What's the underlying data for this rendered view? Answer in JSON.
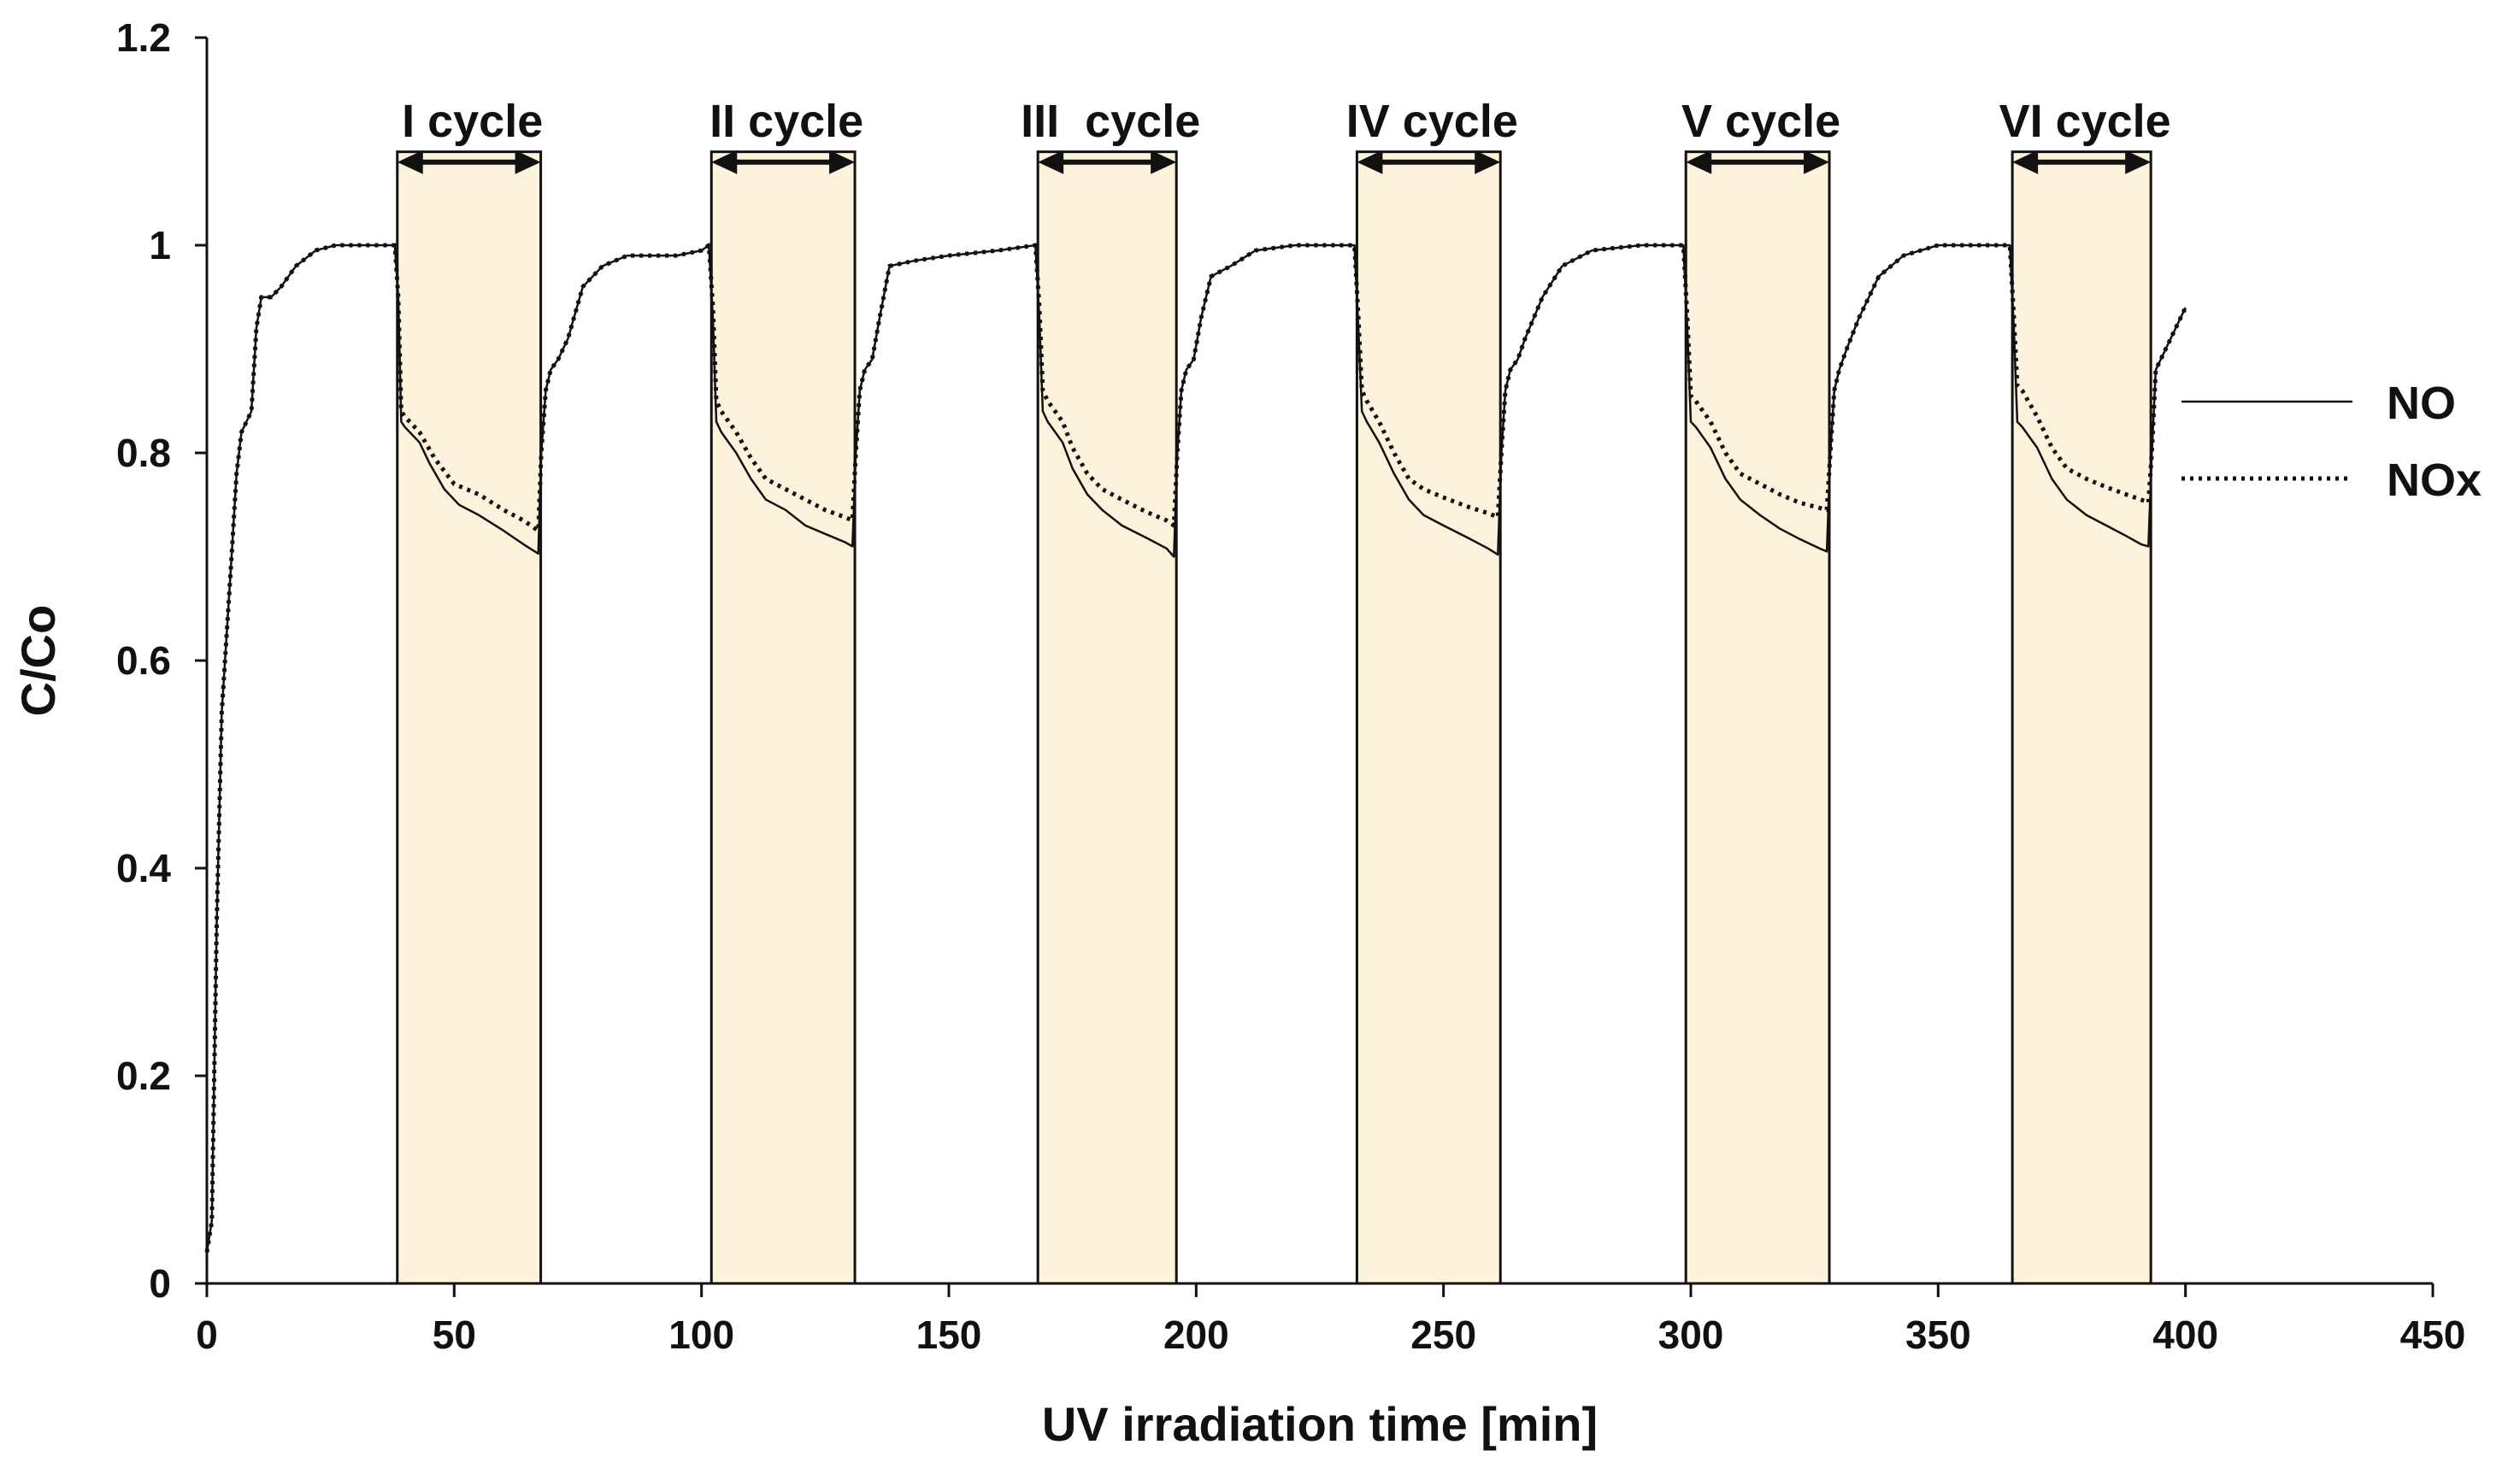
{
  "chart_data": {
    "type": "line",
    "title": "",
    "xlabel": "UV irradiation time [min]",
    "ylabel": "C/Co",
    "xlim": [
      0,
      450
    ],
    "ylim": [
      0,
      1.2
    ],
    "x_ticks": [
      0,
      50,
      100,
      150,
      200,
      250,
      300,
      350,
      400,
      450
    ],
    "y_ticks": [
      0,
      0.2,
      0.4,
      0.6,
      0.8,
      1,
      1.2
    ],
    "x_tick_labels": [
      "0",
      "50",
      "100",
      "150",
      "200",
      "250",
      "300",
      "350",
      "400",
      "450"
    ],
    "y_tick_labels": [
      "0",
      "0.2",
      "0.4",
      "0.6",
      "0.8",
      "1",
      "1.2"
    ],
    "grid": false,
    "legend_position": "right",
    "highlight_color": "#fdf3dc",
    "cycles": [
      {
        "label": "I cycle",
        "start": 38.5,
        "end": 67.5
      },
      {
        "label": "II cycle",
        "start": 102,
        "end": 131
      },
      {
        "label": "III  cycle",
        "start": 168,
        "end": 196
      },
      {
        "label": "IV cycle",
        "start": 232.5,
        "end": 261.5
      },
      {
        "label": "V cycle",
        "start": 299,
        "end": 328
      },
      {
        "label": "VI cycle",
        "start": 365,
        "end": 393
      }
    ],
    "series": [
      {
        "name": "NO",
        "style": "solid",
        "color": "#111111",
        "points": [
          [
            0,
            0.03
          ],
          [
            1,
            0.06
          ],
          [
            2,
            0.35
          ],
          [
            3,
            0.55
          ],
          [
            5,
            0.7
          ],
          [
            6,
            0.78
          ],
          [
            7,
            0.82
          ],
          [
            8,
            0.83
          ],
          [
            9,
            0.84
          ],
          [
            10,
            0.92
          ],
          [
            11,
            0.95
          ],
          [
            13,
            0.95
          ],
          [
            15,
            0.96
          ],
          [
            18,
            0.98
          ],
          [
            22,
            0.995
          ],
          [
            26,
            1.0
          ],
          [
            30,
            1.0
          ],
          [
            34,
            1.0
          ],
          [
            38,
            1.0
          ],
          [
            38.7,
            0.95
          ],
          [
            39.3,
            0.83
          ],
          [
            40,
            0.825
          ],
          [
            43,
            0.81
          ],
          [
            45,
            0.79
          ],
          [
            48,
            0.765
          ],
          [
            51,
            0.75
          ],
          [
            55,
            0.74
          ],
          [
            60,
            0.725
          ],
          [
            64,
            0.712
          ],
          [
            67,
            0.703
          ],
          [
            67.6,
            0.8
          ],
          [
            68.5,
            0.86
          ],
          [
            69.5,
            0.88
          ],
          [
            71,
            0.89
          ],
          [
            73,
            0.91
          ],
          [
            76,
            0.96
          ],
          [
            80,
            0.98
          ],
          [
            85,
            0.99
          ],
          [
            90,
            0.99
          ],
          [
            95,
            0.99
          ],
          [
            100,
            0.995
          ],
          [
            101.5,
            1.0
          ],
          [
            102.3,
            0.93
          ],
          [
            103,
            0.83
          ],
          [
            104,
            0.82
          ],
          [
            107,
            0.8
          ],
          [
            110,
            0.775
          ],
          [
            113,
            0.755
          ],
          [
            117,
            0.745
          ],
          [
            121,
            0.73
          ],
          [
            125,
            0.722
          ],
          [
            129,
            0.714
          ],
          [
            130.5,
            0.71
          ],
          [
            131.2,
            0.8
          ],
          [
            132,
            0.86
          ],
          [
            133,
            0.88
          ],
          [
            134.5,
            0.89
          ],
          [
            136,
            0.93
          ],
          [
            138,
            0.98
          ],
          [
            143,
            0.985
          ],
          [
            150,
            0.99
          ],
          [
            160,
            0.995
          ],
          [
            167.5,
            1.0
          ],
          [
            168.3,
            0.93
          ],
          [
            169,
            0.84
          ],
          [
            170,
            0.83
          ],
          [
            173,
            0.81
          ],
          [
            175,
            0.785
          ],
          [
            178,
            0.76
          ],
          [
            181,
            0.745
          ],
          [
            185,
            0.73
          ],
          [
            190,
            0.718
          ],
          [
            194,
            0.708
          ],
          [
            195.5,
            0.7
          ],
          [
            196.2,
            0.8
          ],
          [
            197,
            0.86
          ],
          [
            198,
            0.88
          ],
          [
            199.5,
            0.89
          ],
          [
            201,
            0.93
          ],
          [
            203,
            0.97
          ],
          [
            207,
            0.98
          ],
          [
            212,
            0.995
          ],
          [
            220,
            1.0
          ],
          [
            228,
            1.0
          ],
          [
            232,
            1.0
          ],
          [
            232.8,
            0.92
          ],
          [
            233.5,
            0.84
          ],
          [
            234.5,
            0.83
          ],
          [
            237,
            0.81
          ],
          [
            240,
            0.78
          ],
          [
            243,
            0.755
          ],
          [
            246,
            0.74
          ],
          [
            250,
            0.73
          ],
          [
            255,
            0.718
          ],
          [
            259,
            0.708
          ],
          [
            261,
            0.702
          ],
          [
            261.7,
            0.8
          ],
          [
            262.5,
            0.86
          ],
          [
            263.5,
            0.88
          ],
          [
            265,
            0.89
          ],
          [
            266.5,
            0.91
          ],
          [
            270,
            0.95
          ],
          [
            274,
            0.98
          ],
          [
            280,
            0.995
          ],
          [
            290,
            1.0
          ],
          [
            298.5,
            1.0
          ],
          [
            299.3,
            0.92
          ],
          [
            300,
            0.83
          ],
          [
            301,
            0.825
          ],
          [
            304,
            0.805
          ],
          [
            307,
            0.775
          ],
          [
            310,
            0.755
          ],
          [
            314,
            0.74
          ],
          [
            318,
            0.727
          ],
          [
            322,
            0.717
          ],
          [
            326,
            0.708
          ],
          [
            327.5,
            0.705
          ],
          [
            328.2,
            0.8
          ],
          [
            329,
            0.86
          ],
          [
            330,
            0.88
          ],
          [
            331.5,
            0.9
          ],
          [
            334,
            0.93
          ],
          [
            338,
            0.97
          ],
          [
            343,
            0.99
          ],
          [
            350,
            1.0
          ],
          [
            360,
            1.0
          ],
          [
            364.5,
            1.0
          ],
          [
            365.3,
            0.92
          ],
          [
            366,
            0.83
          ],
          [
            367,
            0.825
          ],
          [
            370,
            0.805
          ],
          [
            373,
            0.775
          ],
          [
            376,
            0.755
          ],
          [
            380,
            0.74
          ],
          [
            384,
            0.73
          ],
          [
            388,
            0.72
          ],
          [
            391,
            0.712
          ],
          [
            392.5,
            0.71
          ],
          [
            393.2,
            0.8
          ],
          [
            394,
            0.88
          ],
          [
            396,
            0.9
          ],
          [
            398,
            0.92
          ],
          [
            400,
            0.94
          ]
        ]
      },
      {
        "name": "NOx",
        "style": "dotted",
        "color": "#111111",
        "points": [
          [
            0,
            0.03
          ],
          [
            1,
            0.06
          ],
          [
            2,
            0.35
          ],
          [
            3,
            0.55
          ],
          [
            5,
            0.7
          ],
          [
            6,
            0.78
          ],
          [
            7,
            0.82
          ],
          [
            8,
            0.83
          ],
          [
            9,
            0.84
          ],
          [
            10,
            0.92
          ],
          [
            11,
            0.95
          ],
          [
            13,
            0.95
          ],
          [
            15,
            0.96
          ],
          [
            18,
            0.98
          ],
          [
            22,
            0.995
          ],
          [
            26,
            1.0
          ],
          [
            30,
            1.0
          ],
          [
            34,
            1.0
          ],
          [
            38,
            1.0
          ],
          [
            38.7,
            0.95
          ],
          [
            39.3,
            0.84
          ],
          [
            40,
            0.835
          ],
          [
            43,
            0.82
          ],
          [
            46,
            0.795
          ],
          [
            50,
            0.77
          ],
          [
            55,
            0.76
          ],
          [
            60,
            0.745
          ],
          [
            64,
            0.735
          ],
          [
            67,
            0.725
          ],
          [
            67.6,
            0.8
          ],
          [
            68.5,
            0.86
          ],
          [
            69.5,
            0.88
          ],
          [
            71,
            0.89
          ],
          [
            73,
            0.91
          ],
          [
            76,
            0.96
          ],
          [
            80,
            0.98
          ],
          [
            85,
            0.99
          ],
          [
            90,
            0.99
          ],
          [
            95,
            0.99
          ],
          [
            100,
            0.995
          ],
          [
            101.5,
            1.0
          ],
          [
            102.3,
            0.94
          ],
          [
            103,
            0.85
          ],
          [
            104,
            0.84
          ],
          [
            107,
            0.82
          ],
          [
            110,
            0.795
          ],
          [
            113,
            0.775
          ],
          [
            117,
            0.765
          ],
          [
            121,
            0.755
          ],
          [
            125,
            0.745
          ],
          [
            129,
            0.738
          ],
          [
            130.5,
            0.735
          ],
          [
            131.2,
            0.8
          ],
          [
            132,
            0.86
          ],
          [
            133,
            0.88
          ],
          [
            134.5,
            0.89
          ],
          [
            136,
            0.93
          ],
          [
            138,
            0.98
          ],
          [
            143,
            0.985
          ],
          [
            150,
            0.99
          ],
          [
            160,
            0.995
          ],
          [
            167.5,
            1.0
          ],
          [
            168.3,
            0.94
          ],
          [
            169,
            0.86
          ],
          [
            170,
            0.85
          ],
          [
            173,
            0.83
          ],
          [
            175,
            0.805
          ],
          [
            178,
            0.78
          ],
          [
            181,
            0.765
          ],
          [
            185,
            0.755
          ],
          [
            190,
            0.743
          ],
          [
            194,
            0.735
          ],
          [
            195.5,
            0.73
          ],
          [
            196.2,
            0.8
          ],
          [
            197,
            0.86
          ],
          [
            198,
            0.88
          ],
          [
            199.5,
            0.89
          ],
          [
            201,
            0.93
          ],
          [
            203,
            0.97
          ],
          [
            207,
            0.98
          ],
          [
            212,
            0.995
          ],
          [
            220,
            1.0
          ],
          [
            228,
            1.0
          ],
          [
            232,
            1.0
          ],
          [
            232.8,
            0.93
          ],
          [
            233.5,
            0.86
          ],
          [
            234.5,
            0.85
          ],
          [
            237,
            0.83
          ],
          [
            240,
            0.8
          ],
          [
            243,
            0.775
          ],
          [
            246,
            0.765
          ],
          [
            250,
            0.757
          ],
          [
            255,
            0.748
          ],
          [
            259,
            0.742
          ],
          [
            261,
            0.738
          ],
          [
            261.7,
            0.8
          ],
          [
            262.5,
            0.86
          ],
          [
            263.5,
            0.88
          ],
          [
            265,
            0.89
          ],
          [
            266.5,
            0.91
          ],
          [
            270,
            0.95
          ],
          [
            274,
            0.98
          ],
          [
            280,
            0.995
          ],
          [
            290,
            1.0
          ],
          [
            298.5,
            1.0
          ],
          [
            299.3,
            0.93
          ],
          [
            300,
            0.855
          ],
          [
            301,
            0.85
          ],
          [
            304,
            0.83
          ],
          [
            307,
            0.8
          ],
          [
            310,
            0.78
          ],
          [
            314,
            0.77
          ],
          [
            318,
            0.76
          ],
          [
            322,
            0.752
          ],
          [
            326,
            0.747
          ],
          [
            327.5,
            0.745
          ],
          [
            328.2,
            0.8
          ],
          [
            329,
            0.86
          ],
          [
            330,
            0.88
          ],
          [
            331.5,
            0.9
          ],
          [
            334,
            0.93
          ],
          [
            338,
            0.97
          ],
          [
            343,
            0.99
          ],
          [
            350,
            1.0
          ],
          [
            360,
            1.0
          ],
          [
            364.5,
            1.0
          ],
          [
            365.3,
            0.93
          ],
          [
            366,
            0.865
          ],
          [
            367,
            0.86
          ],
          [
            370,
            0.835
          ],
          [
            373,
            0.805
          ],
          [
            376,
            0.785
          ],
          [
            380,
            0.775
          ],
          [
            384,
            0.767
          ],
          [
            388,
            0.76
          ],
          [
            391,
            0.755
          ],
          [
            392.5,
            0.752
          ],
          [
            393.2,
            0.8
          ],
          [
            394,
            0.88
          ],
          [
            396,
            0.9
          ],
          [
            398,
            0.92
          ],
          [
            400,
            0.94
          ]
        ]
      }
    ]
  }
}
